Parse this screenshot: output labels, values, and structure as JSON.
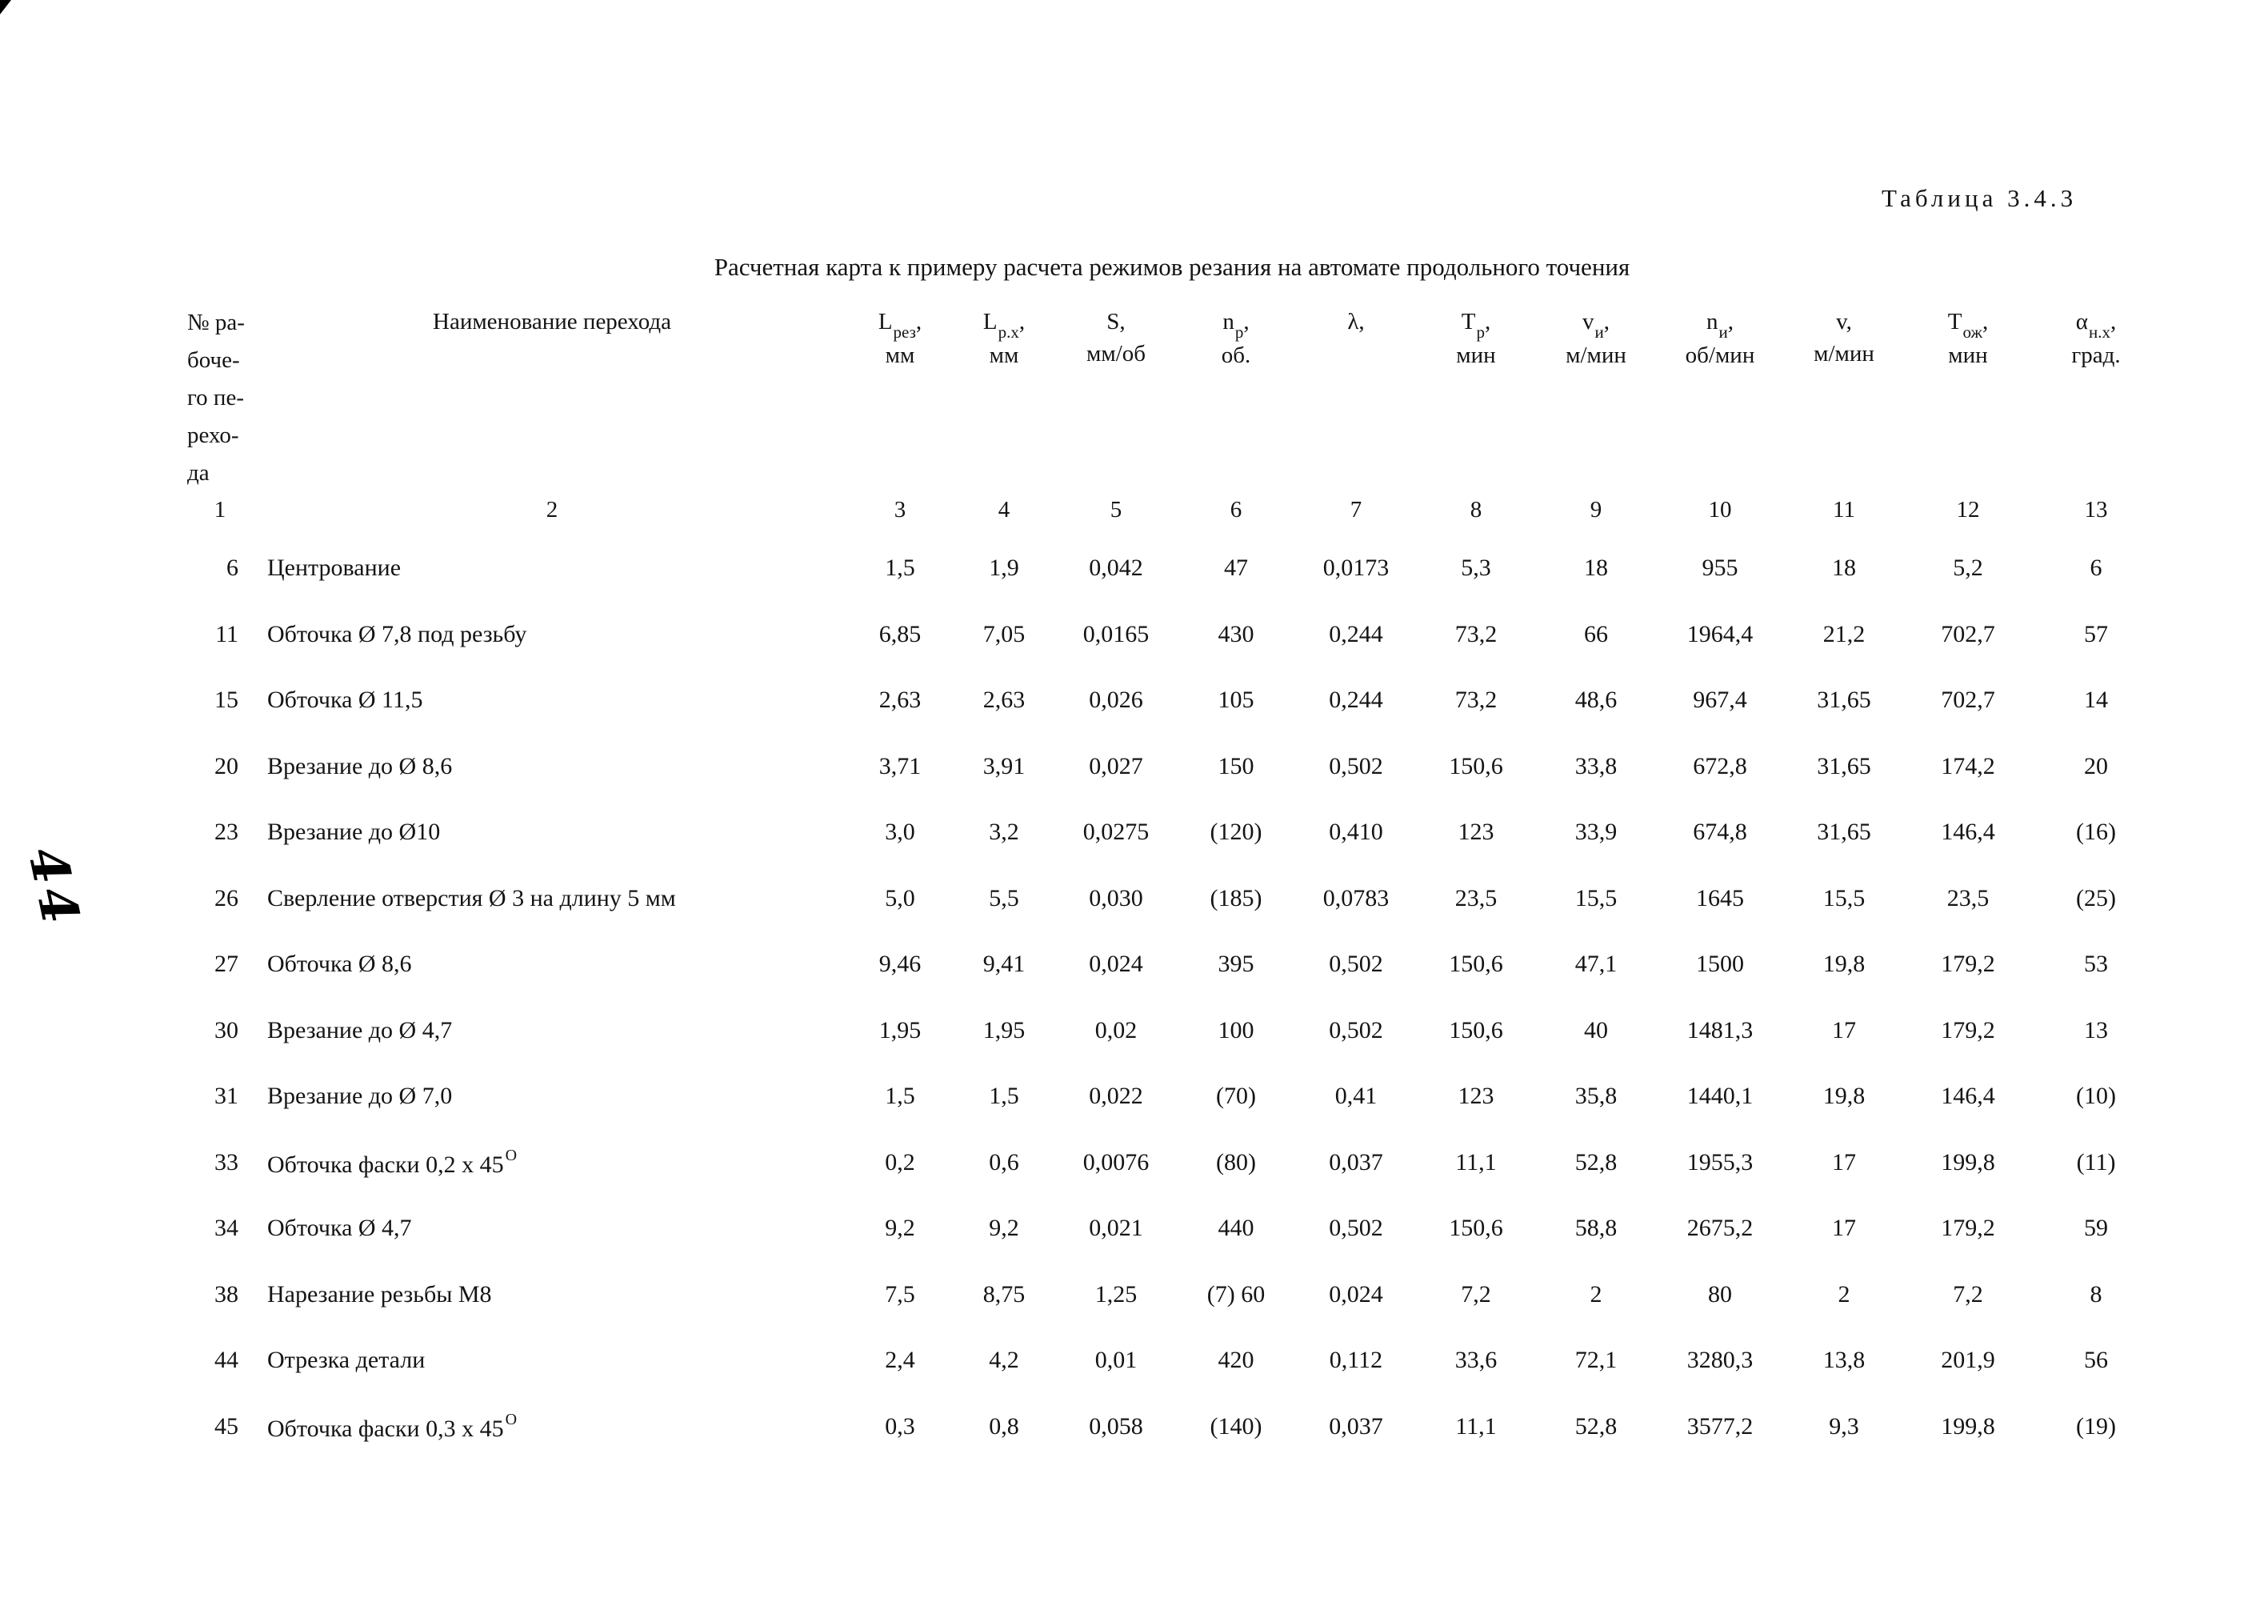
{
  "page": {
    "table_label": "Таблица 3.4.3",
    "title": "Расчетная карта  к примеру расчета режимов резания на автомате продольного точения",
    "margin_note": "44"
  },
  "table": {
    "col1_header": "№ ра-\nбоче-\nго пе-\nрехо-\nда",
    "col2_header": "Наименование перехода",
    "value_headers": [
      {
        "sym": "L",
        "sub": "рез",
        "tail": ",",
        "unit": "мм"
      },
      {
        "sym": "L",
        "sub": "р.х",
        "tail": ",",
        "unit": "мм"
      },
      {
        "sym": "S,",
        "sub": "",
        "tail": "",
        "unit": "мм/об"
      },
      {
        "sym": "n",
        "sub": "р",
        "tail": ",",
        "unit": "об."
      },
      {
        "sym": "λ,",
        "sub": "",
        "tail": "",
        "unit": ""
      },
      {
        "sym": "T",
        "sub": "р",
        "tail": ",",
        "unit": "мин"
      },
      {
        "sym": "v",
        "sub": "и",
        "tail": ",",
        "unit": "м/мин"
      },
      {
        "sym": "n",
        "sub": "и",
        "tail": ",",
        "unit": "об/мин"
      },
      {
        "sym": "v,",
        "sub": "",
        "tail": "",
        "unit": "м/мин"
      },
      {
        "sym": "T",
        "sub": "ож",
        "tail": ",",
        "unit": "мин"
      },
      {
        "sym": "α",
        "sub": "н.х",
        "tail": ",",
        "unit": "град."
      }
    ],
    "col_numbers": [
      "1",
      "2",
      "3",
      "4",
      "5",
      "6",
      "7",
      "8",
      "9",
      "10",
      "11",
      "12",
      "13"
    ],
    "rows": [
      {
        "no": "6",
        "name": "Центрование",
        "name_sup": "",
        "values": [
          "1,5",
          "1,9",
          "0,042",
          "47",
          "0,0173",
          "5,3",
          "18",
          "955",
          "18",
          "5,2",
          "6"
        ]
      },
      {
        "no": "11",
        "name": "Обточка Ø 7,8 под резьбу",
        "name_sup": "",
        "values": [
          "6,85",
          "7,05",
          "0,0165",
          "430",
          "0,244",
          "73,2",
          "66",
          "1964,4",
          "21,2",
          "702,7",
          "57"
        ]
      },
      {
        "no": "15",
        "name": "Обточка Ø 11,5",
        "name_sup": "",
        "values": [
          "2,63",
          "2,63",
          "0,026",
          "105",
          "0,244",
          "73,2",
          "48,6",
          "967,4",
          "31,65",
          "702,7",
          "14"
        ]
      },
      {
        "no": "20",
        "name": "Врезание до Ø 8,6",
        "name_sup": "",
        "values": [
          "3,71",
          "3,91",
          "0,027",
          "150",
          "0,502",
          "150,6",
          "33,8",
          "672,8",
          "31,65",
          "174,2",
          "20"
        ]
      },
      {
        "no": "23",
        "name": "Врезание до Ø10",
        "name_sup": "",
        "values": [
          "3,0",
          "3,2",
          "0,0275",
          "(120)",
          "0,410",
          "123",
          "33,9",
          "674,8",
          "31,65",
          "146,4",
          "(16)"
        ]
      },
      {
        "no": "26",
        "name": "Сверление отверстия Ø 3 на длину 5 мм",
        "name_sup": "",
        "values": [
          "5,0",
          "5,5",
          "0,030",
          "(185)",
          "0,0783",
          "23,5",
          "15,5",
          "1645",
          "15,5",
          "23,5",
          "(25)"
        ]
      },
      {
        "no": "27",
        "name": "Обточка Ø 8,6",
        "name_sup": "",
        "values": [
          "9,46",
          "9,41",
          "0,024",
          "395",
          "0,502",
          "150,6",
          "47,1",
          "1500",
          "19,8",
          "179,2",
          "53"
        ]
      },
      {
        "no": "30",
        "name": "Врезание до Ø 4,7",
        "name_sup": "",
        "values": [
          "1,95",
          "1,95",
          "0,02",
          "100",
          "0,502",
          "150,6",
          "40",
          "1481,3",
          "17",
          "179,2",
          "13"
        ]
      },
      {
        "no": "31",
        "name": "Врезание до Ø 7,0",
        "name_sup": "",
        "values": [
          "1,5",
          "1,5",
          "0,022",
          "(70)",
          "0,41",
          "123",
          "35,8",
          "1440,1",
          "19,8",
          "146,4",
          "(10)"
        ]
      },
      {
        "no": "33",
        "name": "Обточка фаски 0,2 x 45",
        "name_sup": "О",
        "values": [
          "0,2",
          "0,6",
          "0,0076",
          "(80)",
          "0,037",
          "11,1",
          "52,8",
          "1955,3",
          "17",
          "199,8",
          "(11)"
        ]
      },
      {
        "no": "34",
        "name": "Обточка Ø 4,7",
        "name_sup": "",
        "values": [
          "9,2",
          "9,2",
          "0,021",
          "440",
          "0,502",
          "150,6",
          "58,8",
          "2675,2",
          "17",
          "179,2",
          "59"
        ]
      },
      {
        "no": "38",
        "name": "Нарезание резьбы М8",
        "name_sup": "",
        "values": [
          "7,5",
          "8,75",
          "1,25",
          "(7) 60",
          "0,024",
          "7,2",
          "2",
          "80",
          "2",
          "7,2",
          "8"
        ]
      },
      {
        "no": "44",
        "name": "Отрезка детали",
        "name_sup": "",
        "values": [
          "2,4",
          "4,2",
          "0,01",
          "420",
          "0,112",
          "33,6",
          "72,1",
          "3280,3",
          "13,8",
          "201,9",
          "56"
        ]
      },
      {
        "no": "45",
        "name": "Обточка фаски 0,3 x 45",
        "name_sup": "О",
        "values": [
          "0,3",
          "0,8",
          "0,058",
          "(140)",
          "0,037",
          "11,1",
          "52,8",
          "3577,2",
          "9,3",
          "199,8",
          "(19)"
        ]
      }
    ]
  }
}
